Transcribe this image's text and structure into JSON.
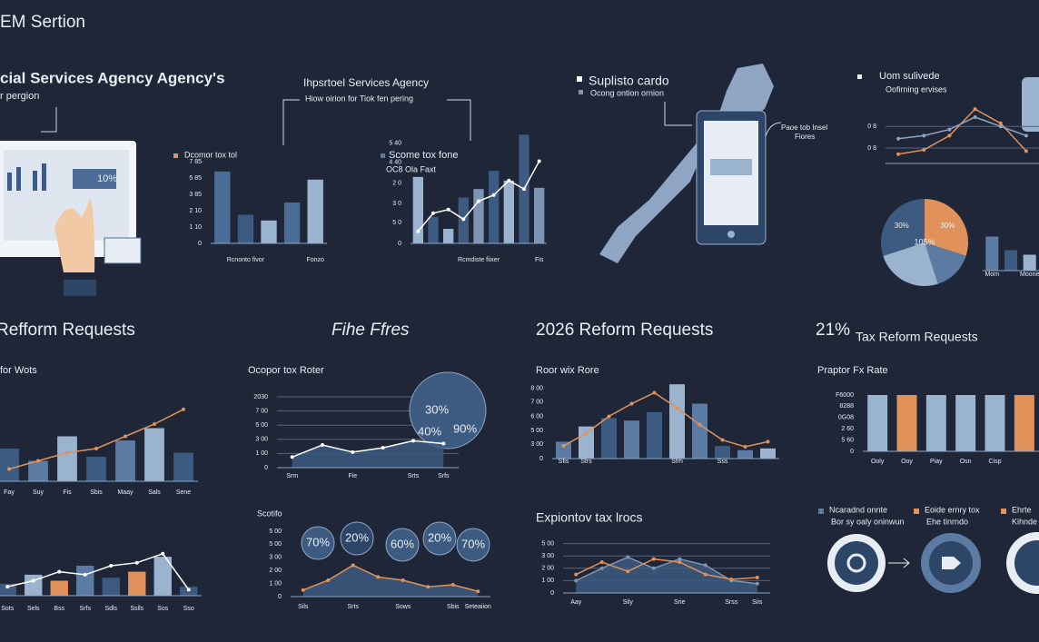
{
  "texts": {
    "header": "EM Sertion",
    "headline": "cial Services Agency Agency's",
    "subhead": "r pergion",
    "monitor_label": "10%",
    "panel_title": "Ihpsrtoel Services Agency",
    "panel_sub": "Hiow oirion for Tiok fen pering",
    "map_title": "Suplisto cardo",
    "map_sub": "Ocong ontion ornion",
    "phone_note": [
      "Paoe tob Insel",
      "Fiores"
    ],
    "legend": [
      {
        "title": "Ncaradnd onnte",
        "sub": "Bor sy oaly oninwun"
      },
      {
        "title": "Eoide ernry tox",
        "sub": "Ehe tinrndo"
      },
      {
        "title": "Ehrte",
        "sub": "Kihnde"
      }
    ]
  },
  "chart_data": [
    {
      "type": "bar",
      "title": "Dcomor tox tol",
      "categories": [
        null,
        "Rcnonto fivor",
        null,
        null,
        "Fonzo"
      ],
      "series": [
        {
          "type": "bar",
          "colors": [
            "#4a6c96",
            "#3d5a80",
            "#9ab3cf",
            "#4a6c96",
            "#9ab3cf"
          ],
          "values": [
            88,
            35,
            28,
            50,
            78
          ]
        }
      ],
      "ylim": [
        0,
        100
      ],
      "yticks": [
        0,
        {
          "value": 20,
          "label": "1 10"
        },
        {
          "value": 40,
          "label": "2 10"
        },
        {
          "value": 60,
          "label": "3 85"
        },
        {
          "value": 80,
          "label": "5 85"
        },
        {
          "value": 100,
          "label": "7 85"
        }
      ],
      "grid": false
    },
    {
      "type": "bar",
      "title": "Scome tox fone",
      "subtitle": "OC8 Ola Faxt",
      "categories": [
        null,
        null,
        null,
        null,
        "Rcmdiste fiixer",
        null,
        null,
        null,
        "Fis"
      ],
      "series": [
        {
          "type": "bar",
          "colors": [
            "#9ab3cf",
            "#3d5a80",
            "#9ab3cf",
            "#3d5a80",
            "#7d95b3",
            "#3d5a80",
            "#9ab3cf",
            "#3d5a80",
            "#7d95b3"
          ],
          "values": [
            55,
            22,
            12,
            38,
            45,
            60,
            52,
            90,
            46
          ]
        },
        {
          "type": "line",
          "color": "#ffffff",
          "values": [
            10,
            25,
            28,
            20,
            35,
            40,
            52,
            45,
            68
          ]
        }
      ],
      "ylim": [
        0,
        100
      ],
      "yticks": [
        0,
        {
          "value": 17,
          "label": "5 0"
        },
        {
          "value": 33,
          "label": "3 0"
        },
        {
          "value": 50,
          "label": "2 0"
        },
        {
          "value": 67,
          "label": "4 40"
        },
        {
          "value": 83,
          "label": "5 40"
        }
      ],
      "grid": false
    },
    {
      "type": "line",
      "title": "Uom sulivede",
      "subtitle": "Oofirning ervises",
      "series": [
        {
          "type": "line",
          "color": "#e0925a",
          "values": [
            15,
            22,
            45,
            88,
            65,
            20
          ]
        },
        {
          "type": "line",
          "color": "#8ea6c4",
          "values": [
            40,
            45,
            55,
            75,
            60,
            45
          ]
        }
      ],
      "ylim": [
        0,
        100
      ],
      "yticks": [
        {
          "value": 25,
          "label": "0 8"
        },
        {
          "value": 60,
          "label": "0 8"
        }
      ],
      "grid": true
    },
    {
      "type": "pie",
      "values": [
        30,
        15,
        25,
        30
      ],
      "colors": [
        "#e0925a",
        "#5b7ba3",
        "#9ab3cf",
        "#3d5a80"
      ],
      "value_labels": [
        "30%",
        null,
        null,
        "30%"
      ],
      "annotations": [
        "105%"
      ]
    },
    {
      "type": "bar",
      "categories": [
        "Mom",
        null,
        "Moone"
      ],
      "series": [
        {
          "type": "bar",
          "colors": [
            "#5b7ba3",
            "#3d5a80",
            "#9ab3cf"
          ],
          "values": [
            75,
            45,
            35
          ]
        }
      ],
      "ylim": [
        0,
        100
      ]
    },
    {
      "type": "bar",
      "title": "Refform Requests",
      "subtitle": "for Wots",
      "categories": [
        "Fay",
        "Suy",
        "Fis",
        "Sbis",
        "Maay",
        "Sals",
        "Sene"
      ],
      "series": [
        {
          "type": "bar",
          "colors": [
            "#3d5a80",
            "#5b7ba3",
            "#9ab3cf",
            "#3d5a80",
            "#5b7ba3",
            "#9ab3cf",
            "#3d5a80"
          ],
          "values": [
            40,
            25,
            55,
            30,
            50,
            65,
            35
          ]
        },
        {
          "type": "line",
          "color": "#e0925a",
          "values": [
            15,
            25,
            35,
            40,
            55,
            70,
            88
          ]
        }
      ],
      "ylim": [
        0,
        100
      ]
    },
    {
      "type": "area",
      "title": "Fihe Ffres",
      "subtitle": "Ocopor tox Roter",
      "categories": [
        "Srm",
        null,
        "Fie",
        null,
        "Srts",
        "Srfs"
      ],
      "series": [
        {
          "type": "area",
          "color": "#ffffff",
          "values": [
            15,
            32,
            22,
            28,
            38,
            34
          ]
        }
      ],
      "ylim": [
        0,
        100
      ],
      "yticks": [
        0,
        {
          "value": 20,
          "label": "1 00"
        },
        {
          "value": 40,
          "label": "3 00"
        },
        {
          "value": 60,
          "label": "5 00"
        },
        {
          "value": 80,
          "label": "7 00"
        },
        {
          "value": 100,
          "label": "2030"
        }
      ],
      "grid": true,
      "annotations": [
        "30%",
        "40%",
        "90%"
      ]
    },
    {
      "type": "bar",
      "title": "2026 Reform Requests",
      "subtitle": "Roor wix Rore",
      "categories": [
        "Sfis",
        "Sfrs",
        null,
        null,
        null,
        "Sfrh",
        null,
        "Sss",
        null,
        null
      ],
      "series": [
        {
          "type": "bar",
          "colors": [
            "#5b7ba3",
            "#9ab3cf",
            "#3d5a80",
            "#5b7ba3",
            "#3d5a80",
            "#9ab3cf",
            "#5b7ba3",
            "#3d5a80",
            "#5b7ba3",
            "#9ab3cf"
          ],
          "values": [
            20,
            38,
            48,
            45,
            55,
            88,
            65,
            15,
            10,
            12
          ]
        },
        {
          "type": "line",
          "color": "#e0925a",
          "values": [
            15,
            30,
            50,
            65,
            78,
            60,
            40,
            22,
            14,
            20
          ]
        }
      ],
      "ylim": [
        0,
        100
      ],
      "yticks": [
        0,
        {
          "value": 17,
          "label": "3 00"
        },
        {
          "value": 33,
          "label": "5 00"
        },
        {
          "value": 50,
          "label": "6 00"
        },
        {
          "value": 67,
          "label": "7 00"
        },
        {
          "value": 83,
          "label": "8 00"
        }
      ],
      "grid": false
    },
    {
      "type": "bar",
      "title": "Tax Reform Requests",
      "subtitle": "Praptor Fx Rate",
      "annotations": [
        "21%"
      ],
      "categories": [
        "Ooly",
        "Ooy",
        "Piay",
        "Osn",
        "Cisp",
        null
      ],
      "series": [
        {
          "type": "bar",
          "colors": [
            "#9ab3cf",
            "#e0925a",
            "#9ab3cf",
            "#9ab3cf",
            "#9ab3cf",
            "#e0925a"
          ],
          "values": [
            100,
            100,
            100,
            100,
            100,
            100
          ]
        }
      ],
      "ylim": [
        0,
        100
      ],
      "yticks": [
        0,
        {
          "value": 20,
          "label": "5 60"
        },
        {
          "value": 40,
          "label": "2 60"
        },
        {
          "value": 60,
          "label": "0G08"
        },
        {
          "value": 80,
          "label": "8288"
        },
        {
          "value": 100,
          "label": "F6000"
        }
      ],
      "grid": false
    },
    {
      "type": "bar",
      "categories": [
        "Sots",
        "Sels",
        "Bss",
        "Srfs",
        "Sdls",
        "Sslls",
        "Sos",
        "Sso"
      ],
      "series": [
        {
          "type": "bar",
          "colors": [
            "#3d5a80",
            "#9ab3cf",
            "#e0925a",
            "#5b7ba3",
            "#3d5a80",
            "#e0925a",
            "#9ab3cf",
            "#3d5a80"
          ],
          "values": [
            20,
            35,
            25,
            50,
            30,
            40,
            65,
            15
          ]
        },
        {
          "type": "line",
          "color": "#ffffff",
          "values": [
            15,
            25,
            40,
            35,
            50,
            55,
            70,
            10
          ]
        }
      ],
      "ylim": [
        0,
        100
      ]
    },
    {
      "type": "area",
      "title": "Scotifo",
      "categories": [
        "Sils",
        null,
        "Srts",
        null,
        "Sows",
        null,
        "Sbis",
        "Seteaiion"
      ],
      "series": [
        {
          "type": "area",
          "color": "#e0925a",
          "values": [
            10,
            25,
            48,
            30,
            25,
            15,
            18,
            8
          ]
        }
      ],
      "ylim": [
        0,
        100
      ],
      "yticks": [
        0,
        {
          "value": 20,
          "label": "1 00"
        },
        {
          "value": 40,
          "label": "2 00"
        },
        {
          "value": 60,
          "label": "3 00"
        },
        {
          "value": 80,
          "label": "5 00"
        },
        {
          "value": 100,
          "label": "5 00"
        }
      ],
      "grid": false,
      "annotations": [
        "70%",
        "20%",
        "60%",
        "20%",
        "70%"
      ]
    },
    {
      "type": "area",
      "title": "Expiontov tax lrocs",
      "categories": [
        "Aay",
        null,
        "Sily",
        null,
        "Srie",
        null,
        "Srss",
        "Siis"
      ],
      "series": [
        {
          "type": "area",
          "color": "#7d95b3",
          "values": [
            20,
            40,
            58,
            40,
            55,
            45,
            20,
            15
          ]
        },
        {
          "type": "line",
          "color": "#e0925a",
          "values": [
            30,
            50,
            35,
            55,
            50,
            30,
            22,
            25
          ]
        }
      ],
      "ylim": [
        0,
        100
      ],
      "yticks": [
        0,
        {
          "value": 20,
          "label": "1 00"
        },
        {
          "value": 40,
          "label": "2 00"
        },
        {
          "value": 60,
          "label": "3 00"
        },
        {
          "value": 80,
          "label": "5 00"
        }
      ],
      "grid": true
    }
  ]
}
